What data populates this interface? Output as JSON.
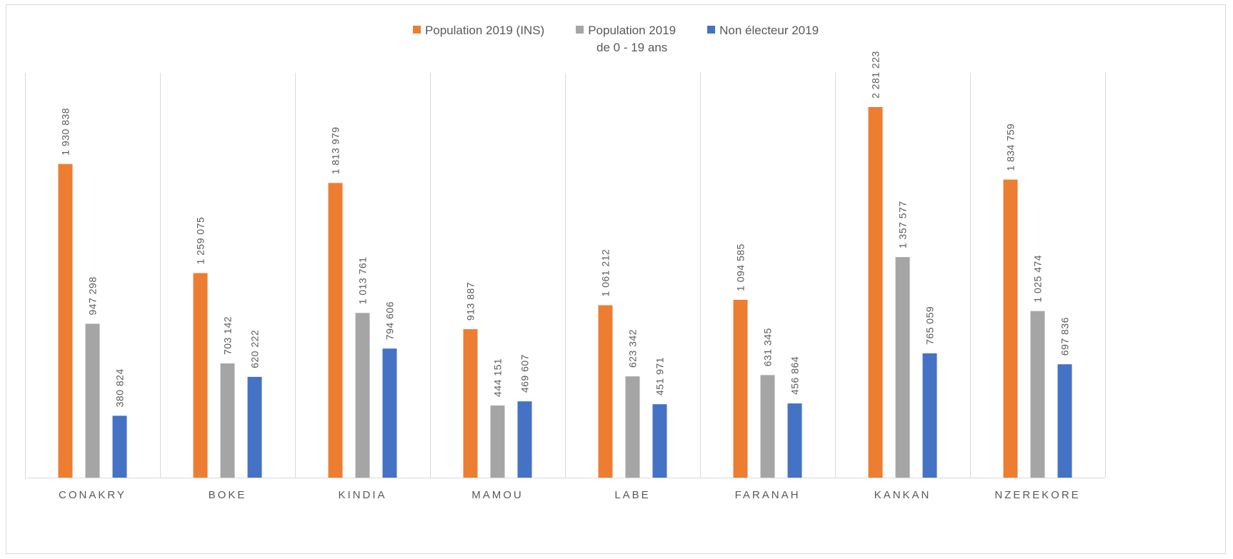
{
  "colors": {
    "orange": "#ED7D31",
    "gray": "#A5A5A5",
    "blue": "#4472C4",
    "gridline": "#d9d9d9",
    "text": "#595959"
  },
  "chart_data": {
    "type": "bar",
    "title": "",
    "xlabel": "",
    "ylabel": "",
    "legend_position": "top-center",
    "grid": "vertical separators between categories",
    "ylim": [
      0,
      2600000
    ],
    "categories": [
      "CONAKRY",
      "BOKE",
      "KINDIA",
      "MAMOU",
      "LABE",
      "FARANAH",
      "KANKAN",
      "NZEREKORE"
    ],
    "series": [
      {
        "name": "Population 2019 (INS)",
        "color": "#ED7D31",
        "values": [
          1930838,
          1259075,
          1813979,
          913887,
          1061212,
          1094585,
          2281223,
          1834759
        ],
        "labels": [
          "1 930 838",
          "1 259 075",
          "1 813 979",
          "913 887",
          "1 061 212",
          "1 094 585",
          "2 281 223",
          "1 834 759"
        ]
      },
      {
        "name": "Population 2019\nde 0 - 19 ans",
        "color": "#A5A5A5",
        "values": [
          947298,
          703142,
          1013761,
          444151,
          623342,
          631345,
          1357577,
          1025474
        ],
        "labels": [
          "947 298",
          "703 142",
          "1 013 761",
          "444 151",
          "623 342",
          "631 345",
          "1 357 577",
          "1 025 474"
        ]
      },
      {
        "name": "Non électeur 2019",
        "color": "#4472C4",
        "values": [
          380824,
          620222,
          794606,
          469607,
          451971,
          456864,
          765059,
          697836
        ],
        "labels": [
          "380 824",
          "620 222",
          "794 606",
          "469 607",
          "451 971",
          "456 864",
          "765 059",
          "697 836"
        ]
      }
    ]
  }
}
